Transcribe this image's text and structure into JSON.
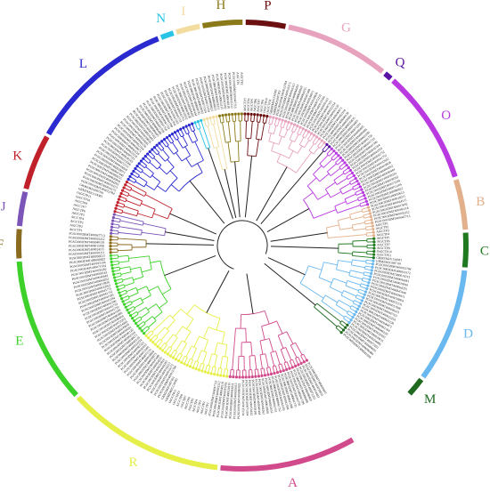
{
  "clades": [
    {
      "label": "A",
      "color": "#d14a8b",
      "leaves": 26
    },
    {
      "label": "R",
      "color": "#e6ef4a",
      "leaves": 30
    },
    {
      "label": "E",
      "color": "#3fd12b",
      "leaves": 28
    },
    {
      "label": "F",
      "color": "#8a6a1e",
      "leaves": 6
    },
    {
      "label": "J",
      "color": "#7b55b8",
      "leaves": 7
    },
    {
      "label": "K",
      "color": "#c0202a",
      "leaves": 11
    },
    {
      "label": "L",
      "color": "#2a2ad0",
      "leaves": 28
    },
    {
      "label": "N",
      "color": "#29c3e6",
      "leaves": 3
    },
    {
      "label": "I",
      "color": "#f2dca0",
      "leaves": 5
    },
    {
      "label": "H",
      "color": "#8a7a1a",
      "leaves": 8
    },
    {
      "label": "P",
      "color": "#6b0f10",
      "leaves": 8
    },
    {
      "label": "G",
      "color": "#e7a3be",
      "leaves": 20
    },
    {
      "label": "Q",
      "color": "#5a12a6",
      "leaves": 2
    },
    {
      "label": "O",
      "color": "#b93ae0",
      "leaves": 22
    },
    {
      "label": "B",
      "color": "#e3b08c",
      "leaves": 10
    },
    {
      "label": "C",
      "color": "#1f7a1f",
      "leaves": 7
    },
    {
      "label": "D",
      "color": "#6ab8f0",
      "leaves": 22
    },
    {
      "label": "M",
      "color": "#1f6a1f",
      "leaves": 4
    }
  ],
  "leaf_labels": [
    "PGSC0003DMT400020691",
    "PGSC0003DMT400039835",
    "PGSC0003DMT400054483",
    "PGSC0003DMT400072201",
    "PGSC0003DMT400080605",
    "PGSC0003DMT400080486",
    "PGSC0003DMT400041599",
    "PGSC0003DMT400041750",
    "PGSC0003DMT400041733",
    "PGSC0003DMT400041590",
    "PGSC0003DMT400041594",
    "PGSC0003DMT400041593",
    "PGSC0003DMT400041752",
    "PGSC0003DMT400041751",
    "PGSC0003DMT400032652",
    "PGSC0003DMT400019836",
    "PGSC0003DMT400064262",
    "PGSC0003DMT400040444",
    "PGSC0003DMT400058181",
    "PGSC0003DMT400058182",
    "PGSC0003DMT400071034",
    "PGSC0003DMT400015104",
    "PGSC0003DMT400080822",
    "PGSC0003DMT400050613",
    "PGSC0003DMT400018211",
    "PGSC0003DMT400024115",
    "PGSC0003DMT400015092",
    "PGSC0003DMT400040118",
    "PGSC0003DMT400035212",
    "PGSC0003DMT400047713",
    "AtGCTP1",
    "AtGCTP2",
    "AtGCTP3",
    "AtGCTP4",
    "AtGCTP5",
    "AtGCTP6",
    "AtGCTP7",
    "AtGCTP8",
    "OsGCTP10",
    "OsGCTP11",
    "GRMZM2G134381",
    "GRMZM2G087101",
    "PGSC0003DMT400012784",
    "PGSC0003DMT400016172",
    "PGSC0003DMT400016313",
    "PGSC0003DMT400044283",
    "PGSC0003DMT400020810",
    "PGSC0003DMT400064255",
    "PGSC0003DMT400047448",
    "PGSC0003DMT400039071",
    "PGSC0003DMT400018804",
    "PGSC0003DMT400072131",
    "PGSC0003DMT400013566",
    "PGSC0003DMT400030103",
    "PGSC0003DMT400087321",
    "PGSC0003DMT400022254",
    "PGSC0003DMT400043120",
    "PGSC0003DMT400040671",
    "PGSC0003DMT400062104",
    "PGSC0003DMT400046120"
  ]
}
